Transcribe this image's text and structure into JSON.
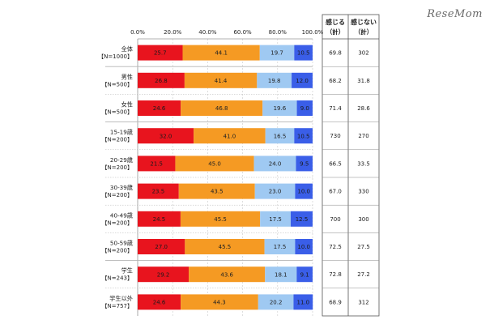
{
  "watermark": "ReseMom",
  "chart_data": {
    "type": "bar",
    "orientation": "horizontal",
    "stacked": true,
    "percent_stacked": true,
    "xlim": [
      0,
      100
    ],
    "x_ticks": [
      "0.0%",
      "20.0%",
      "40.0%",
      "60.0%",
      "80.0%",
      "100.0%"
    ],
    "categories": [
      "全体【N=1000】",
      "男性【N=500】",
      "女性【N=500】",
      "15-19歳【N=200】",
      "20-29歳【N=200】",
      "30-39歳【N=200】",
      "40-49歳【N=200】",
      "50-59歳【N=200】",
      "学生【N=243】",
      "学生以外【N=757】"
    ],
    "category_lines": [
      [
        "全体",
        "【N=1000】"
      ],
      [
        "男性",
        "【N=500】"
      ],
      [
        "女性",
        "【N=500】"
      ],
      [
        "15-19歳",
        "【N=200】"
      ],
      [
        "20-29歳",
        "【N=200】"
      ],
      [
        "30-39歳",
        "【N=200】"
      ],
      [
        "40-49歳",
        "【N=200】"
      ],
      [
        "50-59歳",
        "【N=200】"
      ],
      [
        "学生",
        "【N=243】"
      ],
      [
        "学生以外",
        "【N=757】"
      ]
    ],
    "series": [
      {
        "color": "#e8141e",
        "values": [
          25.7,
          26.8,
          24.6,
          32.0,
          21.5,
          23.5,
          24.5,
          27.0,
          29.2,
          24.6
        ]
      },
      {
        "color": "#f59a23",
        "values": [
          44.1,
          41.4,
          46.8,
          41.0,
          45.0,
          43.5,
          45.5,
          45.5,
          43.6,
          44.3
        ]
      },
      {
        "color": "#9fc9f2",
        "values": [
          19.7,
          19.8,
          19.6,
          16.5,
          24.0,
          23.0,
          17.5,
          17.5,
          18.1,
          20.2
        ]
      },
      {
        "color": "#3a5ee8",
        "values": [
          10.5,
          12.0,
          9.0,
          10.5,
          9.5,
          10.0,
          12.5,
          10.0,
          9.1,
          11.0
        ]
      }
    ],
    "value_labels": [
      [
        "25.7",
        "44.1",
        "19.7",
        "10.5"
      ],
      [
        "26.8",
        "41.4",
        "19.8",
        "12.0"
      ],
      [
        "24.6",
        "46.8",
        "19.6",
        "9.0"
      ],
      [
        "32.0",
        "41.0",
        "16.5",
        "10.5"
      ],
      [
        "21.5",
        "45.0",
        "24.0",
        "9.5"
      ],
      [
        "23.5",
        "43.5",
        "23.0",
        "10.0"
      ],
      [
        "24.5",
        "45.5",
        "17.5",
        "12.5"
      ],
      [
        "27.0",
        "45.5",
        "17.5",
        "10.0"
      ],
      [
        "29.2",
        "43.6",
        "18.1",
        "9.1"
      ],
      [
        "24.6",
        "44.3",
        "20.2",
        "11.0"
      ]
    ],
    "summary_table": {
      "headers": [
        [
          "感じる",
          "（計）"
        ],
        [
          "感じない",
          "（計）"
        ]
      ],
      "rows": [
        [
          "69.8",
          "302"
        ],
        [
          "68.2",
          "31.8"
        ],
        [
          "71.4",
          "28.6"
        ],
        [
          "730",
          "270"
        ],
        [
          "66.5",
          "33.5"
        ],
        [
          "67.0",
          "330"
        ],
        [
          "700",
          "300"
        ],
        [
          "72.5",
          "27.5"
        ],
        [
          "72.8",
          "27.2"
        ],
        [
          "68.9",
          "312"
        ]
      ]
    },
    "grid": true,
    "legend": "none"
  }
}
